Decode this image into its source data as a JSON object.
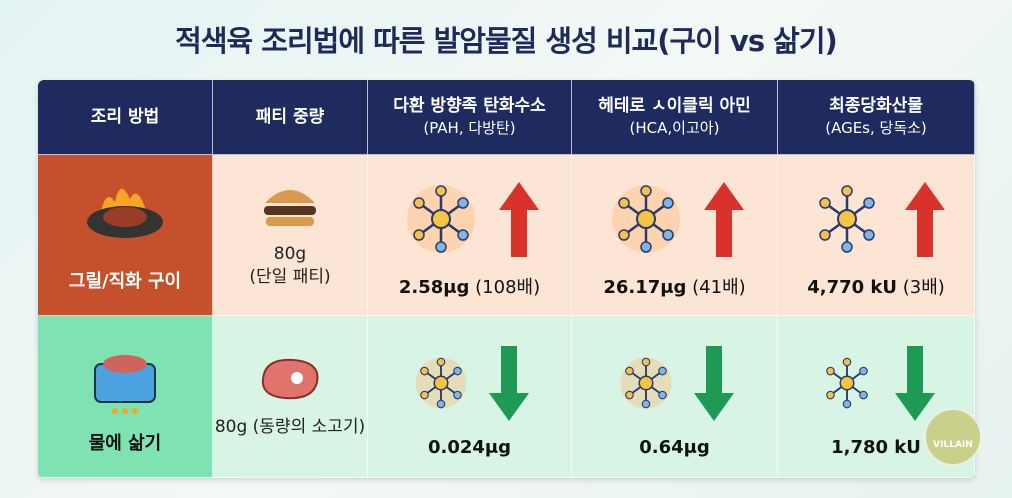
{
  "title": "적색육 조리법에 따른 발암물질 생성 비교(구이 vs 삶기)",
  "table": {
    "headers": [
      {
        "main": "조리 방법"
      },
      {
        "main": "패티 중량"
      },
      {
        "main": "다환 방향족 탄화수소",
        "sub": "(PAH, 다방탄)"
      },
      {
        "main": "헤테로 ㅅ이클릭 아민",
        "sub": "(HCA,이고아)"
      },
      {
        "main": "최종당화산물",
        "sub": "(AGEs, 당독소)"
      }
    ],
    "rows": [
      {
        "method": "그릴/직화 구이",
        "weight": "80g",
        "weight_note": "(단일 패티)",
        "values": [
          {
            "amount": "2.58μg",
            "note": "(108배)"
          },
          {
            "amount": "26.17μg",
            "note": "(41배)"
          },
          {
            "amount": "4,770 kU",
            "note": "(3배)"
          }
        ]
      },
      {
        "method": "물에 삶기",
        "weight": "80g (동량의 소고기)",
        "values": [
          {
            "amount": "0.024μg"
          },
          {
            "amount": "0.64μg"
          },
          {
            "amount": "1,780 kU"
          }
        ]
      }
    ]
  },
  "watermark": "VILLAIN"
}
